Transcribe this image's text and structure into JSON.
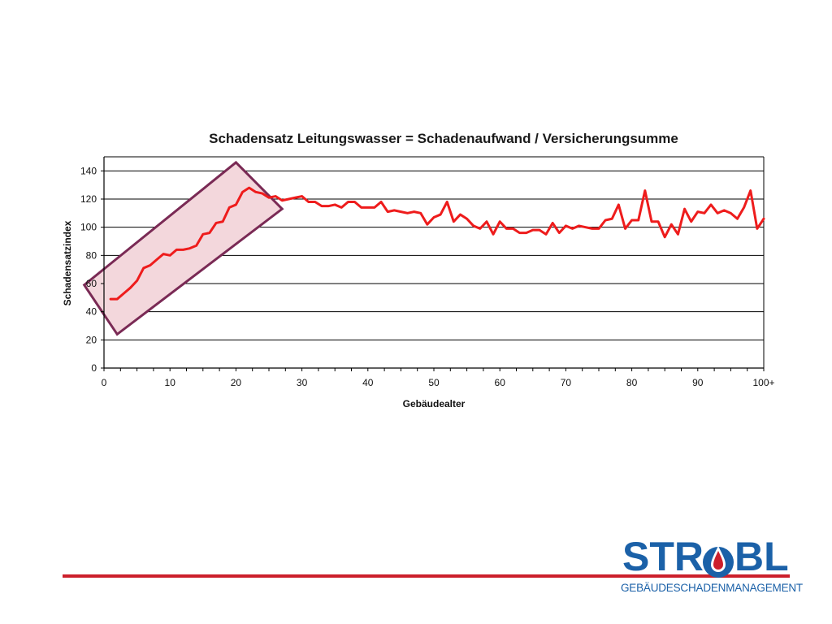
{
  "chart_data": {
    "type": "line",
    "title": "Schadensatz Leitungswasser = Schadenaufwand / Versicherungsumme",
    "xlabel": "Gebäudealter",
    "ylabel": "Schadensatzindex",
    "xlim": [
      0,
      100
    ],
    "ylim": [
      0,
      150
    ],
    "x_ticks": [
      0,
      10,
      20,
      30,
      40,
      50,
      60,
      70,
      80,
      90,
      100
    ],
    "x_tick_labels": [
      "0",
      "10",
      "20",
      "30",
      "40",
      "50",
      "60",
      "70",
      "80",
      "90",
      "100+"
    ],
    "y_ticks": [
      0,
      20,
      40,
      60,
      80,
      100,
      120,
      140
    ],
    "y_tick_labels": [
      "0",
      "20",
      "40",
      "60",
      "80",
      "100",
      "120",
      "140"
    ],
    "grid": true,
    "series_color": "#ee1c1c",
    "highlight_color": "#7a2a55",
    "highlight_fill": "#f3d7dc",
    "highlight_box": {
      "description": "rotated rectangle enclosing the rising section",
      "corners": [
        [
          -3,
          59
        ],
        [
          20,
          146
        ],
        [
          27,
          113
        ],
        [
          2,
          24
        ]
      ]
    },
    "series": [
      {
        "x": [
          1,
          2,
          3,
          4,
          5,
          6,
          7,
          8,
          9,
          10,
          11,
          12,
          13,
          14,
          15,
          16,
          17,
          18,
          19,
          20,
          21,
          22,
          23,
          24,
          25,
          26,
          27,
          28,
          29,
          30,
          31,
          32,
          33,
          34,
          35,
          36,
          37,
          38,
          39,
          40,
          41,
          42,
          43,
          44,
          45,
          46,
          47,
          48,
          49,
          50,
          51,
          52,
          53,
          54,
          55,
          56,
          57,
          58,
          59,
          60,
          61,
          62,
          63,
          64,
          65,
          66,
          67,
          68,
          69,
          70,
          71,
          72,
          73,
          74,
          75,
          76,
          77,
          78,
          79,
          80,
          81,
          82,
          83,
          84,
          85,
          86,
          87,
          88,
          89,
          90,
          91,
          92,
          93,
          94,
          95,
          96,
          97,
          98,
          99,
          100
        ],
        "values": [
          49,
          49,
          53,
          57,
          62,
          71,
          73,
          77,
          81,
          80,
          84,
          84,
          85,
          87,
          95,
          96,
          103,
          104,
          114,
          116,
          125,
          128,
          125,
          124,
          121,
          122,
          119,
          120,
          121,
          122,
          118,
          118,
          115,
          115,
          116,
          114,
          118,
          118,
          114,
          114,
          114,
          118,
          111,
          112,
          111,
          110,
          111,
          110,
          102,
          107,
          109,
          118,
          104,
          109,
          106,
          101,
          99,
          104,
          95,
          104,
          99,
          99,
          96,
          96,
          98,
          98,
          95,
          103,
          96,
          101,
          99,
          101,
          100,
          99,
          99,
          105,
          106,
          116,
          99,
          105,
          105,
          126,
          104,
          104,
          93,
          102,
          95,
          113,
          104,
          111,
          110,
          116,
          110,
          112,
          110,
          106,
          114,
          126,
          99,
          106
        ]
      }
    ]
  },
  "logo": {
    "brand": "STROBL",
    "tagline": "GEBÄUDESCHADENMANAGEMENT",
    "brand_color": "#1b61a8",
    "accent_color": "#cc1f2b"
  }
}
